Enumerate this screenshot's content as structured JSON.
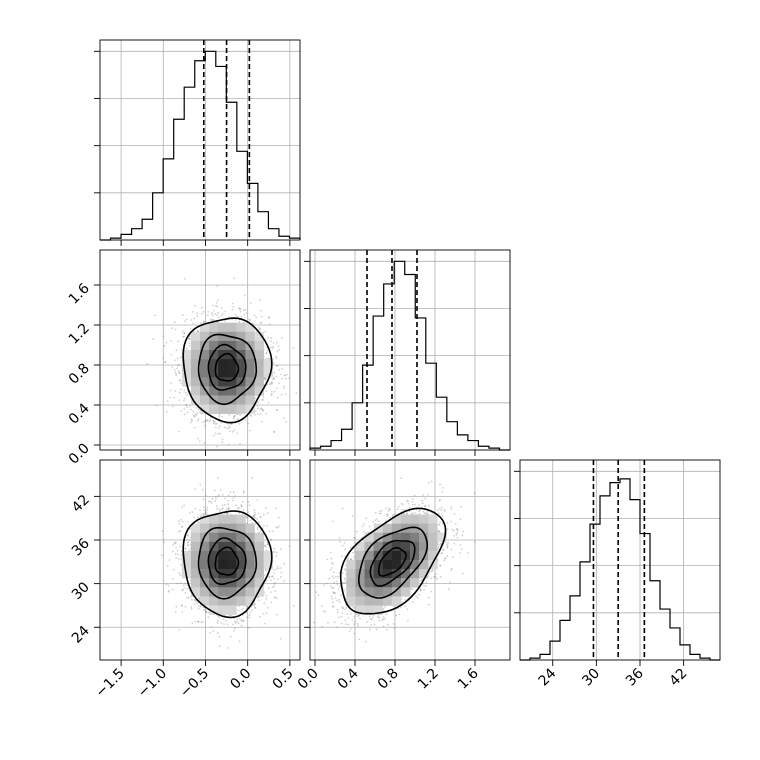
{
  "chart_data": {
    "type": "corner",
    "parameters": [
      {
        "id": "p0",
        "range": [
          -1.75,
          0.62
        ],
        "ticks": [
          -1.5,
          -1.0,
          -0.5,
          0.0,
          0.5
        ],
        "tick_labels": [
          "−1.5",
          "−1.0",
          "−0.5",
          "0.0",
          "0.5"
        ],
        "quantiles": [
          -0.52,
          -0.25,
          0.02
        ],
        "mean": -0.25,
        "sd": 0.25,
        "hist_y": [
          0,
          1,
          3,
          6,
          11,
          25,
          43,
          64,
          81,
          95,
          100,
          92,
          73,
          47,
          30,
          15,
          6,
          2,
          1
        ],
        "hist_ymax": 100
      },
      {
        "id": "p1",
        "range": [
          -0.05,
          1.95
        ],
        "ticks": [
          0.0,
          0.4,
          0.8,
          1.2,
          1.6
        ],
        "tick_labels": [
          "0.0",
          "0.4",
          "0.8",
          "1.2",
          "1.6"
        ],
        "quantiles": [
          0.52,
          0.77,
          1.02
        ],
        "mean": 0.77,
        "sd": 0.25,
        "hist_y": [
          1,
          2,
          5,
          11,
          25,
          45,
          71,
          88,
          100,
          93,
          70,
          46,
          28,
          15,
          8,
          5,
          2,
          1,
          0
        ],
        "hist_ymax": 100
      },
      {
        "id": "p2",
        "range": [
          19.5,
          47.0
        ],
        "ticks": [
          24,
          30,
          36,
          42
        ],
        "tick_labels": [
          "24",
          "30",
          "36",
          "42"
        ],
        "quantiles": [
          29.6,
          33.0,
          36.6
        ],
        "mean": 33.0,
        "sd": 3.5,
        "hist_y": [
          0,
          1,
          3,
          10,
          21,
          34,
          52,
          72,
          87,
          94,
          96,
          85,
          67,
          42,
          27,
          17,
          8,
          3,
          1,
          0
        ],
        "hist_ymax": 100
      }
    ],
    "pairs": [
      {
        "x": 0,
        "y": 1,
        "correlation": 0.0
      },
      {
        "x": 0,
        "y": 2,
        "correlation": 0.0
      },
      {
        "x": 1,
        "y": 2,
        "correlation": 0.5
      }
    ],
    "contour_levels_sigma": [
      0.5,
      1.0,
      1.5,
      2.0
    ],
    "grid": true,
    "title": "",
    "xlabel": "",
    "ylabel": ""
  },
  "colors": {
    "lines": "#000000",
    "grid": "#b0b0b0",
    "points": "#7a7a7a"
  }
}
